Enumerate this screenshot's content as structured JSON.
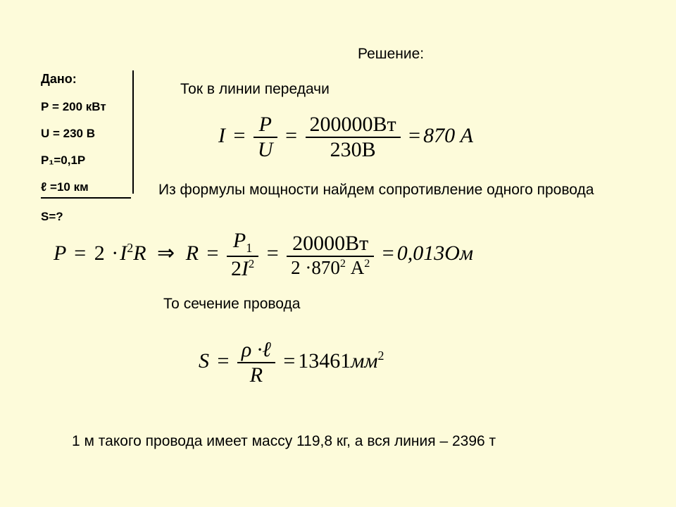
{
  "background_color": "#fdfbda",
  "text_color": "#000000",
  "given": {
    "label": "Дано:",
    "p": "Р = 200 кВт",
    "u": "U = 230 В",
    "p1": "Р₁=0,1Р",
    "l": "ℓ =10 км",
    "find": "S=?"
  },
  "solution_label": "Решение:",
  "step1_text": "Ток в линии передачи",
  "formula1": {
    "lhs_var": "I",
    "frac1_num": "P",
    "frac1_den": "U",
    "frac2_num": "200000Вт",
    "frac2_den": "230В",
    "result": "870 А"
  },
  "step2_text": "Из формулы мощности найдем сопротивление одного провода",
  "formula2": {
    "part1_lhs": "P",
    "part1_rhs_coef": "2",
    "part1_rhs_var1": "I",
    "part1_rhs_exp": "2",
    "part1_rhs_var2": "R",
    "arrow": "⇒",
    "part2_lhs": "R",
    "frac1_num": "P₁",
    "frac1_den_coef": "2",
    "frac1_den_var": "I",
    "frac1_den_exp": "2",
    "frac2_num": "20000Вт",
    "frac2_den": "2 ·870² А²",
    "result": "0,013Ом"
  },
  "step3_text": "То сечение провода",
  "formula3": {
    "lhs": "S",
    "num": "ρ ·ℓ",
    "den": "R",
    "result_val": "13461",
    "result_unit": "мм",
    "result_exp": "2"
  },
  "conclusion": "1 м такого провода имеет массу 119,8 кг, а вся линия – 2396 т"
}
